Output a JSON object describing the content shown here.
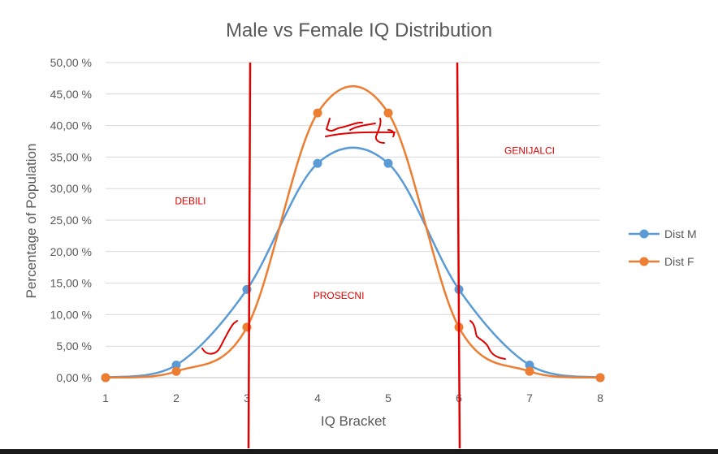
{
  "chart_data": {
    "type": "line",
    "title": "Male vs Female IQ Distribution",
    "xlabel": "IQ Bracket",
    "ylabel": "Percentage of Population",
    "x": [
      1,
      2,
      3,
      4,
      5,
      6,
      7,
      8
    ],
    "xlim": [
      1,
      8
    ],
    "ylim": [
      0,
      50
    ],
    "y_ticks": [
      "0,00 %",
      "5,00 %",
      "10,00 %",
      "15,00 %",
      "20,00 %",
      "25,00 %",
      "30,00 %",
      "35,00 %",
      "40,00 %",
      "45,00 %",
      "50,00 %"
    ],
    "x_ticks": [
      "1",
      "2",
      "3",
      "4",
      "5",
      "6",
      "7",
      "8"
    ],
    "grid": "horizontal",
    "smooth": true,
    "legend_position": "right",
    "series": [
      {
        "name": "Dist M",
        "color": "#5b9bd5",
        "values": [
          0,
          2,
          14,
          34,
          34,
          14,
          2,
          0
        ]
      },
      {
        "name": "Dist F",
        "color": "#ed7d31",
        "values": [
          0,
          1,
          8,
          42,
          42,
          8,
          1,
          0
        ]
      }
    ],
    "annotations": [
      {
        "text": "DEBILI",
        "x": 2.2,
        "y": 27.5
      },
      {
        "text": "PROSECNI",
        "x": 4.3,
        "y": 12.5
      },
      {
        "text": "GENIJALCI",
        "x": 7.0,
        "y": 35.5
      }
    ],
    "vertical_markers": [
      3,
      6
    ],
    "marker_color": "#e00000"
  }
}
